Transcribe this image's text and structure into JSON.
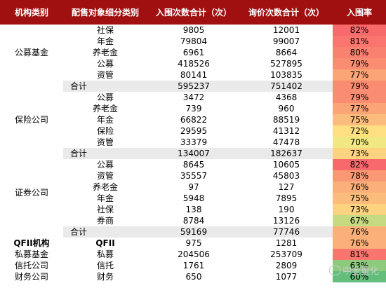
{
  "header": {
    "col1": "机构类别",
    "col2": "配售对象细分类别",
    "col3": "入围次数合计（次）",
    "col4": "询价次数合计（次）",
    "col5": "入围率"
  },
  "colors": {
    "header_bg": "#a11010",
    "total_row_bg": "#eaeaea",
    "rate_scale": {
      "low": "#63be7b",
      "mid": "#ffeb84",
      "high": "#f8696b"
    }
  },
  "groups": [
    {
      "category": "公募基金",
      "rows": [
        {
          "sub": "社保",
          "entered": "9805",
          "inquired": "12001",
          "rate": "82%",
          "rate_num": 82
        },
        {
          "sub": "年金",
          "entered": "79804",
          "inquired": "99007",
          "rate": "81%",
          "rate_num": 81
        },
        {
          "sub": "养老金",
          "entered": "6961",
          "inquired": "8664",
          "rate": "80%",
          "rate_num": 80
        },
        {
          "sub": "公募",
          "entered": "418526",
          "inquired": "527895",
          "rate": "79%",
          "rate_num": 79
        },
        {
          "sub": "资管",
          "entered": "80141",
          "inquired": "103835",
          "rate": "77%",
          "rate_num": 77
        }
      ],
      "total": {
        "sub": "合计",
        "entered": "595237",
        "inquired": "751402",
        "rate": "79%",
        "rate_num": 79
      }
    },
    {
      "category": "保险公司",
      "rows": [
        {
          "sub": "公募",
          "entered": "3472",
          "inquired": "4368",
          "rate": "79%",
          "rate_num": 79
        },
        {
          "sub": "养老金",
          "entered": "739",
          "inquired": "960",
          "rate": "77%",
          "rate_num": 77
        },
        {
          "sub": "年金",
          "entered": "66822",
          "inquired": "88519",
          "rate": "75%",
          "rate_num": 75
        },
        {
          "sub": "保险",
          "entered": "29595",
          "inquired": "41312",
          "rate": "72%",
          "rate_num": 72
        },
        {
          "sub": "资管",
          "entered": "33379",
          "inquired": "47478",
          "rate": "70%",
          "rate_num": 70
        }
      ],
      "total": {
        "sub": "合计",
        "entered": "134007",
        "inquired": "182637",
        "rate": "73%",
        "rate_num": 73
      }
    },
    {
      "category": "证券公司",
      "rows": [
        {
          "sub": "公募",
          "entered": "8645",
          "inquired": "10605",
          "rate": "82%",
          "rate_num": 82
        },
        {
          "sub": "资管",
          "entered": "35557",
          "inquired": "45803",
          "rate": "78%",
          "rate_num": 78
        },
        {
          "sub": "养老金",
          "entered": "97",
          "inquired": "127",
          "rate": "76%",
          "rate_num": 76
        },
        {
          "sub": "年金",
          "entered": "5948",
          "inquired": "7895",
          "rate": "75%",
          "rate_num": 75
        },
        {
          "sub": "社保",
          "entered": "138",
          "inquired": "190",
          "rate": "73%",
          "rate_num": 73
        },
        {
          "sub": "券商",
          "entered": "8784",
          "inquired": "13126",
          "rate": "67%",
          "rate_num": 67
        }
      ],
      "total": {
        "sub": "合计",
        "entered": "59169",
        "inquired": "77746",
        "rate": "76%",
        "rate_num": 76
      }
    },
    {
      "category": "QFII机构",
      "bold_category": true,
      "rows": [
        {
          "sub": "QFII",
          "bold_sub": true,
          "entered": "975",
          "inquired": "1281",
          "rate": "76%",
          "rate_num": 76
        }
      ]
    },
    {
      "category": "私募基金",
      "rows": [
        {
          "sub": "私募",
          "entered": "204506",
          "inquired": "253709",
          "rate": "81%",
          "rate_num": 81
        }
      ]
    },
    {
      "category": "信托公司",
      "rows": [
        {
          "sub": "信托",
          "entered": "1761",
          "inquired": "2809",
          "rate": "63%",
          "rate_num": 63
        }
      ]
    },
    {
      "category": "财务公司",
      "rows": [
        {
          "sub": "财务",
          "entered": "650",
          "inquired": "1077",
          "rate": "60%",
          "rate_num": 60
        }
      ]
    }
  ],
  "watermark": {
    "text": "中金量化"
  }
}
